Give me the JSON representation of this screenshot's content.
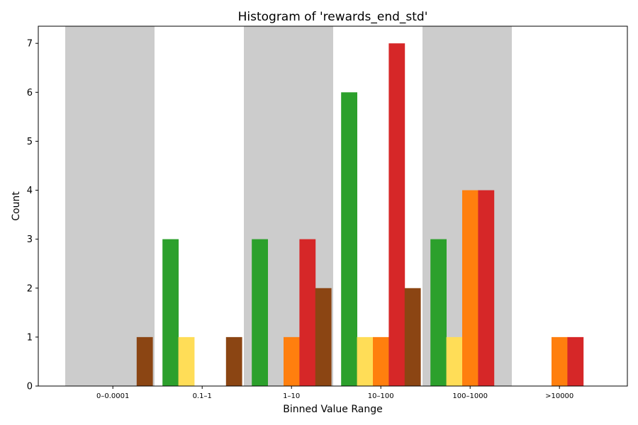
{
  "chart_data": {
    "type": "bar",
    "title": "Histogram of 'rewards_end_std'",
    "xlabel": "Binned Value Range",
    "ylabel": "Count",
    "categories": [
      "0–0.0001",
      "0.1–1",
      "1–10",
      "10–100",
      "100–1000",
      ">10000"
    ],
    "yticks": [
      0,
      1,
      2,
      3,
      4,
      5,
      6,
      7
    ],
    "ylim": [
      0,
      7.35
    ],
    "shaded_bands": [
      0,
      2,
      4
    ],
    "band_color": "#cccccc",
    "series": [
      {
        "color": "#2ca02c",
        "values": [
          0,
          3,
          3,
          6,
          3,
          0
        ]
      },
      {
        "color": "#ffdd57",
        "values": [
          0,
          1,
          0,
          1,
          1,
          0
        ]
      },
      {
        "color": "#ff7f0e",
        "values": [
          0,
          0,
          1,
          1,
          4,
          1
        ]
      },
      {
        "color": "#d62728",
        "values": [
          0,
          0,
          3,
          7,
          4,
          1
        ]
      },
      {
        "color": "#8b4513",
        "values": [
          1,
          1,
          2,
          2,
          0,
          0
        ]
      }
    ]
  }
}
